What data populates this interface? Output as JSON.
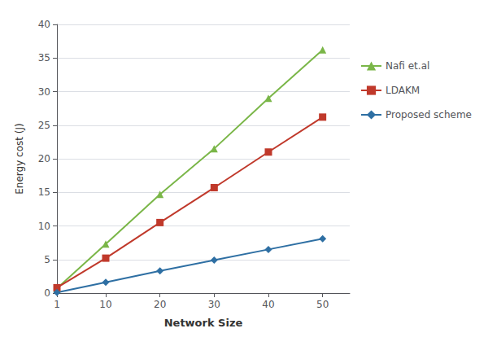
{
  "chart_data": {
    "type": "line",
    "xlabel": "Network Size",
    "ylabel": "Energy cost (J)",
    "x": [
      1,
      10,
      20,
      30,
      40,
      50
    ],
    "series": [
      {
        "name": "Nafi et.al",
        "color": "#7ab648",
        "marker": "triangle",
        "values": [
          0.7,
          7.3,
          14.7,
          21.5,
          29.0,
          36.2
        ]
      },
      {
        "name": "LDAKM",
        "color": "#c0392b",
        "marker": "square",
        "values": [
          0.8,
          5.2,
          10.5,
          15.7,
          21.0,
          26.2
        ]
      },
      {
        "name": "Proposed scheme",
        "color": "#2e6fa3",
        "marker": "diamond",
        "values": [
          0.1,
          1.6,
          3.3,
          4.9,
          6.5,
          8.1
        ]
      }
    ],
    "xlim": [
      1,
      55
    ],
    "xticks": [
      1,
      10,
      20,
      30,
      40,
      50
    ],
    "ylim": [
      0,
      40
    ],
    "yticks": [
      0,
      5,
      10,
      15,
      20,
      25,
      30,
      35,
      40
    ],
    "grid": "y",
    "legend": "right"
  }
}
